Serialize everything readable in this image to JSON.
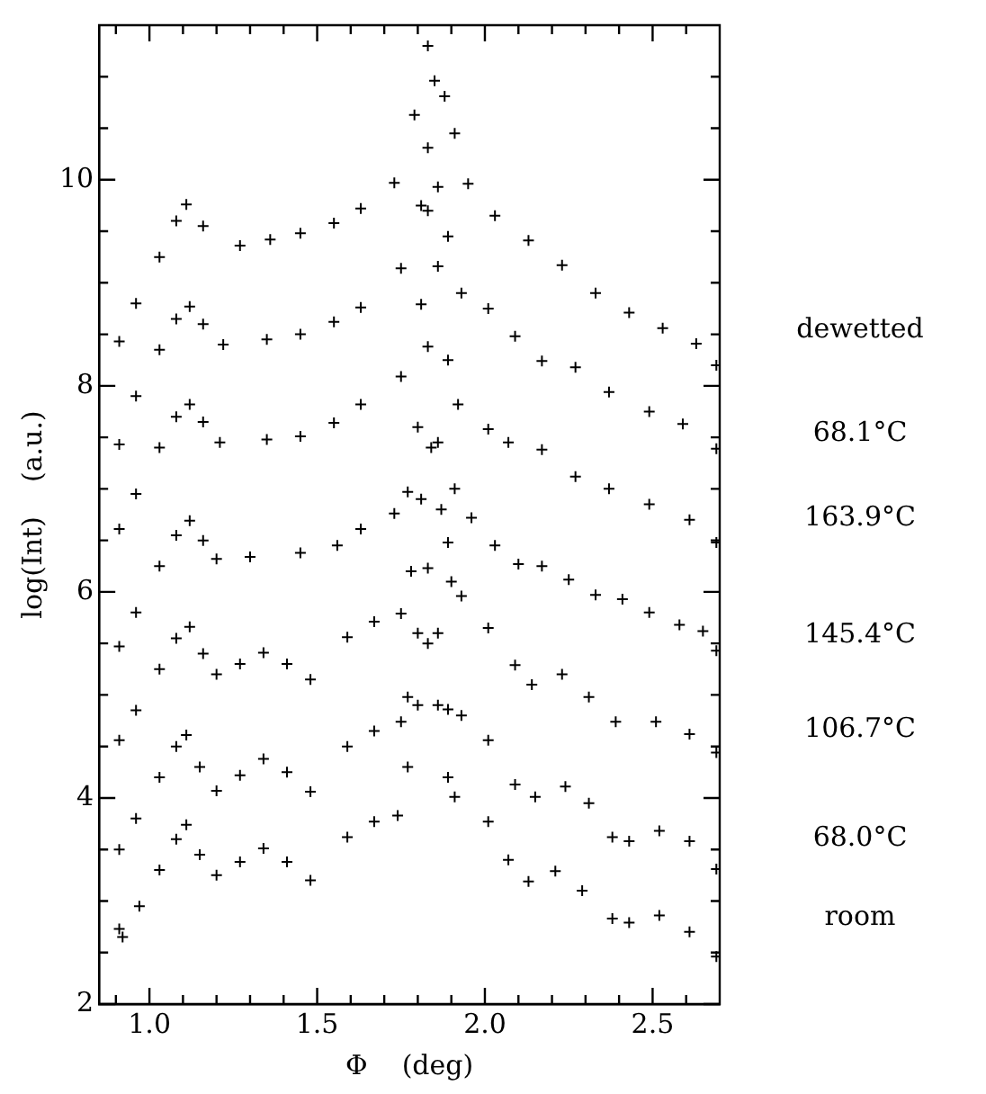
{
  "chart_data": {
    "type": "scatter",
    "xlabel": "Φ    (deg)",
    "ylabel": "log(Int)    (a.u.)",
    "marker": "cross",
    "grid": false,
    "legend": false,
    "xlim": [
      0.85,
      2.7
    ],
    "ylim": [
      2,
      11.5
    ],
    "xticks": [
      {
        "value": 0.9,
        "label": null
      },
      {
        "value": 1,
        "label": "1.0"
      },
      {
        "value": 1.1,
        "label": null
      },
      {
        "value": 1.2,
        "label": null
      },
      {
        "value": 1.3,
        "label": null
      },
      {
        "value": 1.4,
        "label": null
      },
      {
        "value": 1.5,
        "label": "1.5"
      },
      {
        "value": 1.6,
        "label": null
      },
      {
        "value": 1.7,
        "label": null
      },
      {
        "value": 1.8,
        "label": null
      },
      {
        "value": 1.9,
        "label": null
      },
      {
        "value": 2,
        "label": "2.0"
      },
      {
        "value": 2.1,
        "label": null
      },
      {
        "value": 2.2,
        "label": null
      },
      {
        "value": 2.3,
        "label": null
      },
      {
        "value": 2.4,
        "label": null
      },
      {
        "value": 2.5,
        "label": "2.5"
      },
      {
        "value": 2.6,
        "label": null
      }
    ],
    "yticks": [
      2,
      {
        "value": 2.5,
        "label": null
      },
      {
        "value": 3,
        "label": null
      },
      {
        "value": 3.5,
        "label": null
      },
      4,
      {
        "value": 4.5,
        "label": null
      },
      {
        "value": 5,
        "label": null
      },
      {
        "value": 5.5,
        "label": null
      },
      6,
      {
        "value": 6.5,
        "label": null
      },
      {
        "value": 7,
        "label": null
      },
      {
        "value": 7.5,
        "label": null
      },
      8,
      {
        "value": 8.5,
        "label": null
      },
      {
        "value": 9,
        "label": null
      },
      {
        "value": 9.5,
        "label": null
      },
      10,
      {
        "value": 10.5,
        "label": null
      },
      {
        "value": 11,
        "label": null
      }
    ],
    "series": [
      {
        "name": "dewetted",
        "color": "#000000",
        "x": [
          0.91,
          0.96,
          1.03,
          1.08,
          1.11,
          1.16,
          1.27,
          1.36,
          1.45,
          1.55,
          1.63,
          1.73,
          1.79,
          1.83,
          1.85,
          1.88,
          1.91,
          1.95,
          2.03,
          2.13,
          2.23,
          2.33,
          2.43,
          2.53,
          2.63,
          2.69
        ],
        "values": [
          8.43,
          8.8,
          9.25,
          9.6,
          9.76,
          9.55,
          9.36,
          9.42,
          9.48,
          9.58,
          9.72,
          9.97,
          10.63,
          11.3,
          10.96,
          10.81,
          10.45,
          9.96,
          9.65,
          9.41,
          9.17,
          8.9,
          8.71,
          8.56,
          8.41,
          8.2
        ]
      },
      {
        "name": "68.1°C",
        "color": "#000000",
        "x": [
          0.91,
          0.96,
          1.03,
          1.08,
          1.12,
          1.16,
          1.22,
          1.35,
          1.45,
          1.55,
          1.63,
          1.75,
          1.81,
          1.83,
          1.86,
          1.89,
          1.93,
          2.01,
          2.09,
          2.17,
          2.27,
          2.37,
          2.49,
          2.59,
          2.69
        ],
        "values": [
          7.43,
          7.9,
          8.35,
          8.65,
          8.77,
          8.6,
          8.4,
          8.45,
          8.5,
          8.62,
          8.76,
          9.14,
          9.75,
          10.31,
          9.93,
          9.45,
          8.9,
          8.75,
          8.48,
          8.24,
          8.18,
          7.94,
          7.75,
          7.63,
          7.39
        ]
      },
      {
        "name": "163.9°C",
        "color": "#000000",
        "x": [
          0.91,
          0.96,
          1.03,
          1.08,
          1.12,
          1.16,
          1.21,
          1.35,
          1.45,
          1.55,
          1.63,
          1.75,
          1.81,
          1.83,
          1.86,
          1.89,
          1.92,
          2.01,
          2.07,
          2.17,
          2.27,
          2.37,
          2.49,
          2.61,
          2.69
        ],
        "values": [
          6.61,
          6.95,
          7.4,
          7.7,
          7.82,
          7.65,
          7.45,
          7.48,
          7.51,
          7.64,
          7.82,
          8.09,
          8.79,
          9.7,
          9.16,
          8.25,
          7.82,
          7.58,
          7.45,
          7.38,
          7.12,
          7.0,
          6.85,
          6.7,
          6.48
        ]
      },
      {
        "name": "145.4°C",
        "color": "#000000",
        "x": [
          0.91,
          0.96,
          1.03,
          1.08,
          1.12,
          1.16,
          1.2,
          1.3,
          1.45,
          1.56,
          1.63,
          1.73,
          1.77,
          1.8,
          1.83,
          1.86,
          1.89,
          1.91,
          1.96,
          2.03,
          2.1,
          2.17,
          2.25,
          2.33,
          2.41,
          2.49,
          2.58,
          2.65,
          2.69
        ],
        "values": [
          5.47,
          5.8,
          6.25,
          6.55,
          6.69,
          6.5,
          6.32,
          6.34,
          6.38,
          6.45,
          6.61,
          6.76,
          6.97,
          7.6,
          8.38,
          7.45,
          6.48,
          7.0,
          6.72,
          6.45,
          6.27,
          6.25,
          6.12,
          5.97,
          5.93,
          5.8,
          5.68,
          5.62,
          5.43
        ]
      },
      {
        "name": "106.7°C",
        "color": "#000000",
        "x": [
          0.91,
          0.96,
          1.03,
          1.08,
          1.12,
          1.16,
          1.2,
          1.27,
          1.34,
          1.41,
          1.48,
          1.59,
          1.67,
          1.75,
          1.78,
          1.81,
          1.84,
          1.87,
          1.9,
          1.93,
          2.01,
          2.09,
          2.14,
          2.23,
          2.31,
          2.39,
          2.51,
          2.61,
          2.69
        ],
        "values": [
          4.56,
          4.85,
          5.25,
          5.55,
          5.66,
          5.4,
          5.2,
          5.3,
          5.41,
          5.3,
          5.15,
          5.56,
          5.71,
          5.79,
          6.2,
          6.9,
          7.4,
          6.8,
          6.1,
          5.96,
          5.65,
          5.29,
          5.1,
          5.2,
          4.98,
          4.74,
          4.74,
          4.62,
          4.44
        ]
      },
      {
        "name": "68.0°C",
        "color": "#000000",
        "x": [
          0.91,
          0.96,
          1.03,
          1.08,
          1.11,
          1.15,
          1.2,
          1.27,
          1.34,
          1.41,
          1.48,
          1.59,
          1.67,
          1.75,
          1.77,
          1.8,
          1.83,
          1.86,
          1.89,
          1.93,
          2.01,
          2.09,
          2.15,
          2.24,
          2.31,
          2.38,
          2.43,
          2.52,
          2.61,
          2.69
        ],
        "values": [
          3.5,
          3.8,
          4.2,
          4.5,
          4.61,
          4.3,
          4.07,
          4.22,
          4.38,
          4.25,
          4.06,
          4.5,
          4.65,
          4.74,
          4.98,
          5.6,
          6.23,
          5.6,
          4.86,
          4.8,
          4.56,
          4.13,
          4.01,
          4.11,
          3.95,
          3.62,
          3.58,
          3.68,
          3.58,
          3.31
        ]
      },
      {
        "name": "room",
        "color": "#000000",
        "x": [
          0.91,
          0.92,
          0.97,
          1.03,
          1.08,
          1.11,
          1.15,
          1.2,
          1.27,
          1.34,
          1.41,
          1.48,
          1.59,
          1.67,
          1.74,
          1.77,
          1.8,
          1.83,
          1.86,
          1.89,
          1.91,
          2.01,
          2.07,
          2.13,
          2.21,
          2.29,
          2.38,
          2.43,
          2.52,
          2.61,
          2.69
        ],
        "values": [
          2.73,
          2.65,
          2.95,
          3.3,
          3.6,
          3.74,
          3.45,
          3.25,
          3.38,
          3.51,
          3.38,
          3.2,
          3.62,
          3.77,
          3.83,
          4.3,
          4.9,
          5.5,
          4.9,
          4.2,
          4.01,
          3.77,
          3.4,
          3.19,
          3.29,
          3.1,
          2.83,
          2.79,
          2.86,
          2.7,
          2.46
        ]
      }
    ]
  }
}
